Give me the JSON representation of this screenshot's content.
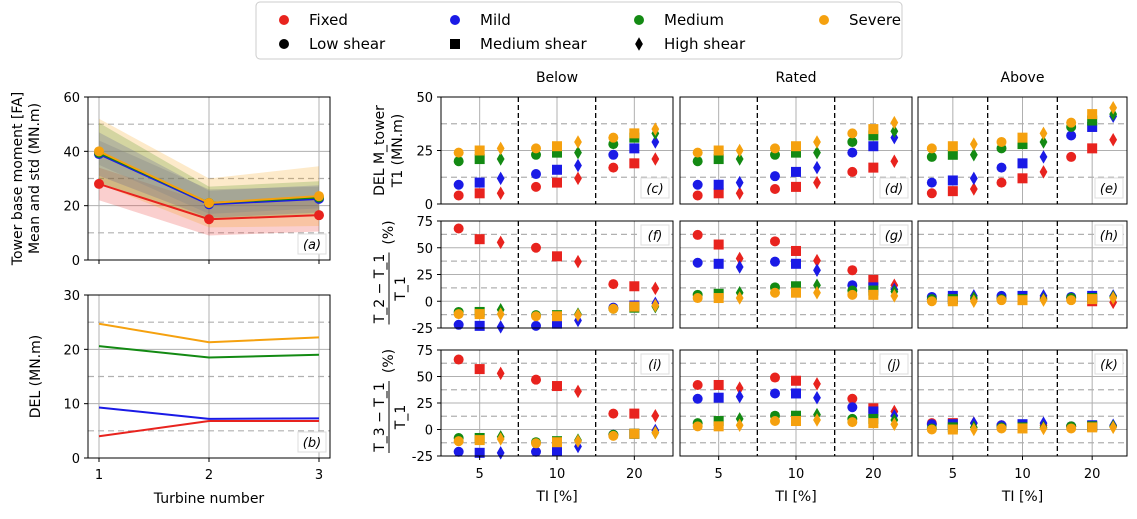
{
  "legend": {
    "items": [
      {
        "label": "Fixed",
        "marker": "circle",
        "color": "#e8231e"
      },
      {
        "label": "Mild",
        "marker": "circle",
        "color": "#1a1ae6"
      },
      {
        "label": "Medium",
        "marker": "circle",
        "color": "#138a13"
      },
      {
        "label": "Severe",
        "marker": "circle",
        "color": "#f5a10f"
      },
      {
        "label": "Low shear",
        "marker": "circle",
        "color": "#000000"
      },
      {
        "label": "Medium shear",
        "marker": "square",
        "color": "#000000"
      },
      {
        "label": "High shear",
        "marker": "diamond",
        "color": "#000000"
      }
    ]
  },
  "column_titles": [
    "Below",
    "Rated",
    "Above"
  ],
  "colors": {
    "Fixed": "#e8231e",
    "Mild": "#1a1ae6",
    "Medium": "#138a13",
    "Severe": "#f5a10f"
  },
  "chart_data": [
    {
      "id": "a",
      "type": "line",
      "panel_label": "(a)",
      "ylabel_lines": [
        "Tower base moment [FA]",
        "Mean and std (MN.m)"
      ],
      "x": [
        1,
        2,
        3
      ],
      "ylim": [
        0,
        60
      ],
      "yticks": [
        0,
        20,
        40,
        60
      ],
      "series": [
        {
          "name": "Fixed",
          "mean": [
            28,
            15,
            16.5
          ],
          "std": [
            6,
            6,
            6
          ]
        },
        {
          "name": "Mild",
          "mean": [
            39,
            20.5,
            22.5
          ],
          "std": [
            8,
            5,
            5
          ]
        },
        {
          "name": "Medium",
          "mean": [
            39.5,
            21,
            23
          ],
          "std": [
            11,
            6,
            6
          ]
        },
        {
          "name": "Severe",
          "mean": [
            40,
            21,
            23.5
          ],
          "std": [
            12,
            9,
            11
          ]
        }
      ],
      "grey_band": {
        "upper": [
          44,
          26,
          27
        ],
        "lower": [
          35,
          17,
          19
        ]
      }
    },
    {
      "id": "b",
      "type": "line",
      "panel_label": "(b)",
      "ylabel": "DEL (MN.m)",
      "xlabel": "Turbine number",
      "x": [
        1,
        2,
        3
      ],
      "xticks": [
        "1",
        "2",
        "3"
      ],
      "ylim": [
        0,
        30
      ],
      "yticks": [
        0,
        10,
        20,
        30
      ],
      "series": [
        {
          "name": "Fixed",
          "values": [
            4,
            6.8,
            6.8
          ]
        },
        {
          "name": "Mild",
          "values": [
            9.3,
            7.2,
            7.3
          ]
        },
        {
          "name": "Medium",
          "values": [
            20.6,
            18.5,
            19
          ]
        },
        {
          "name": "Severe",
          "values": [
            24.7,
            21.3,
            22.2
          ]
        }
      ]
    },
    {
      "id": "row1",
      "type": "scatter",
      "ylabel_lines": [
        "DEL M_tower",
        "T1 (MN.m)"
      ],
      "ylim": [
        0,
        50
      ],
      "yticks": [
        0,
        25,
        50
      ],
      "panel_labels": [
        "(c)",
        "(d)",
        "(e)"
      ],
      "columns": [
        {
          "groups": [
            {
              "ti": "5",
              "points": {
                "Fixed": [
                  4,
                  5,
                  5
                ],
                "Mild": [
                  9,
                  10,
                  12
                ],
                "Medium": [
                  20,
                  21,
                  21
                ],
                "Severe": [
                  24,
                  25,
                  26
                ]
              }
            },
            {
              "ti": "10",
              "points": {
                "Fixed": [
                  8,
                  10,
                  12
                ],
                "Mild": [
                  14,
                  16,
                  18
                ],
                "Medium": [
                  23,
                  24,
                  24
                ],
                "Severe": [
                  26,
                  27,
                  29
                ]
              }
            },
            {
              "ti": "20",
              "points": {
                "Fixed": [
                  17,
                  19,
                  21
                ],
                "Mild": [
                  23,
                  26,
                  29
                ],
                "Medium": [
                  28,
                  31,
                  33
                ],
                "Severe": [
                  31,
                  33,
                  35
                ]
              }
            }
          ]
        },
        {
          "groups": [
            {
              "ti": "5",
              "points": {
                "Fixed": [
                  4,
                  5,
                  5
                ],
                "Mild": [
                  9,
                  9,
                  10
                ],
                "Medium": [
                  20,
                  21,
                  21
                ],
                "Severe": [
                  24,
                  25,
                  25
                ]
              }
            },
            {
              "ti": "10",
              "points": {
                "Fixed": [
                  7,
                  8,
                  10
                ],
                "Mild": [
                  13,
                  15,
                  17
                ],
                "Medium": [
                  23,
                  24,
                  24
                ],
                "Severe": [
                  26,
                  27,
                  29
                ]
              }
            },
            {
              "ti": "20",
              "points": {
                "Fixed": [
                  15,
                  17,
                  20
                ],
                "Mild": [
                  24,
                  27,
                  31
                ],
                "Medium": [
                  29,
                  32,
                  34
                ],
                "Severe": [
                  33,
                  35,
                  38
                ]
              }
            }
          ]
        },
        {
          "groups": [
            {
              "ti": "5",
              "points": {
                "Fixed": [
                  5,
                  6,
                  7
                ],
                "Mild": [
                  10,
                  11,
                  12
                ],
                "Medium": [
                  22,
                  23,
                  23
                ],
                "Severe": [
                  26,
                  27,
                  28
                ]
              }
            },
            {
              "ti": "10",
              "points": {
                "Fixed": [
                  10,
                  12,
                  15
                ],
                "Mild": [
                  17,
                  19,
                  22
                ],
                "Medium": [
                  26,
                  28,
                  29
                ],
                "Severe": [
                  29,
                  31,
                  33
                ]
              }
            },
            {
              "ti": "20",
              "points": {
                "Fixed": [
                  22,
                  26,
                  30
                ],
                "Mild": [
                  32,
                  36,
                  41
                ],
                "Medium": [
                  36,
                  39,
                  42
                ],
                "Severe": [
                  38,
                  42,
                  45
                ]
              }
            }
          ]
        }
      ]
    },
    {
      "id": "row2",
      "type": "scatter",
      "ylabel_lines": [
        "T_2 − T_1",
        "T_1",
        "(%)"
      ],
      "ylim": [
        -25,
        75
      ],
      "yticks": [
        -25,
        0,
        25,
        50,
        75
      ],
      "panel_labels": [
        "(f)",
        "(g)",
        "(h)"
      ],
      "columns": [
        {
          "groups": [
            {
              "ti": "5",
              "points": {
                "Fixed": [
                  68,
                  58,
                  55
                ],
                "Mild": [
                  -22,
                  -23,
                  -24
                ],
                "Medium": [
                  -10,
                  -10,
                  -8
                ],
                "Severe": [
                  -12,
                  -12,
                  -12
                ]
              }
            },
            {
              "ti": "10",
              "points": {
                "Fixed": [
                  50,
                  42,
                  37
                ],
                "Mild": [
                  -23,
                  -21,
                  -18
                ],
                "Medium": [
                  -13,
                  -13,
                  -12
                ],
                "Severe": [
                  -14,
                  -14,
                  -13
                ]
              }
            },
            {
              "ti": "20",
              "points": {
                "Fixed": [
                  16,
                  14,
                  12
                ],
                "Mild": [
                  -6,
                  -4,
                  -2
                ],
                "Medium": [
                  -7,
                  -6,
                  -5
                ],
                "Severe": [
                  -7,
                  -5,
                  -4
                ]
              }
            }
          ]
        },
        {
          "groups": [
            {
              "ti": "5",
              "points": {
                "Fixed": [
                  62,
                  53,
                  40
                ],
                "Mild": [
                  36,
                  35,
                  32
                ],
                "Medium": [
                  6,
                  7,
                  8
                ],
                "Severe": [
                  3,
                  3,
                  3
                ]
              }
            },
            {
              "ti": "10",
              "points": {
                "Fixed": [
                  56,
                  47,
                  38
                ],
                "Mild": [
                  37,
                  35,
                  29
                ],
                "Medium": [
                  13,
                  14,
                  15
                ],
                "Severe": [
                  8,
                  8,
                  8
                ]
              }
            },
            {
              "ti": "20",
              "points": {
                "Fixed": [
                  29,
                  20,
                  15
                ],
                "Mild": [
                  15,
                  13,
                  11
                ],
                "Medium": [
                  10,
                  10,
                  9
                ],
                "Severe": [
                  6,
                  6,
                  5
                ]
              }
            }
          ]
        },
        {
          "groups": [
            {
              "ti": "5",
              "points": {
                "Fixed": [
                  2,
                  2,
                  2
                ],
                "Mild": [
                  4,
                  5,
                  5
                ],
                "Medium": [
                  2,
                  2,
                  3
                ],
                "Severe": [
                  0,
                  0,
                  0
                ]
              }
            },
            {
              "ti": "10",
              "points": {
                "Fixed": [
                  3,
                  3,
                  3
                ],
                "Mild": [
                  5,
                  5,
                  5
                ],
                "Medium": [
                  2,
                  2,
                  2
                ],
                "Severe": [
                  1,
                  1,
                  1
                ]
              }
            },
            {
              "ti": "20",
              "points": {
                "Fixed": [
                  3,
                  0,
                  -1
                ],
                "Mild": [
                  4,
                  5,
                  5
                ],
                "Medium": [
                  3,
                  3,
                  4
                ],
                "Severe": [
                  1,
                  2,
                  3
                ]
              }
            }
          ]
        }
      ]
    },
    {
      "id": "row3",
      "type": "scatter",
      "ylabel_lines": [
        "T_3 − T_1",
        "T_1",
        "(%)"
      ],
      "ylim": [
        -25,
        75
      ],
      "yticks": [
        -25,
        0,
        25,
        50,
        75
      ],
      "xlabel": "TI [%]",
      "xticks": [
        "5",
        "10",
        "20"
      ],
      "panel_labels": [
        "(i)",
        "(j)",
        "(k)"
      ],
      "columns": [
        {
          "groups": [
            {
              "ti": "5",
              "points": {
                "Fixed": [
                  66,
                  57,
                  53
                ],
                "Mild": [
                  -21,
                  -22,
                  -22
                ],
                "Medium": [
                  -8,
                  -8,
                  -7
                ],
                "Severe": [
                  -11,
                  -10,
                  -9
                ]
              }
            },
            {
              "ti": "10",
              "points": {
                "Fixed": [
                  47,
                  41,
                  36
                ],
                "Mild": [
                  -21,
                  -20,
                  -16
                ],
                "Medium": [
                  -12,
                  -11,
                  -10
                ],
                "Severe": [
                  -13,
                  -12,
                  -11
                ]
              }
            },
            {
              "ti": "20",
              "points": {
                "Fixed": [
                  15,
                  15,
                  13
                ],
                "Mild": [
                  -5,
                  -4,
                  -1
                ],
                "Medium": [
                  -5,
                  -4,
                  -3
                ],
                "Severe": [
                  -6,
                  -4,
                  -3
                ]
              }
            }
          ]
        },
        {
          "groups": [
            {
              "ti": "5",
              "points": {
                "Fixed": [
                  42,
                  42,
                  39
                ],
                "Mild": [
                  29,
                  30,
                  31
                ],
                "Medium": [
                  6,
                  8,
                  10
                ],
                "Severe": [
                  3,
                  3,
                  4
                ]
              }
            },
            {
              "ti": "10",
              "points": {
                "Fixed": [
                  49,
                  46,
                  43
                ],
                "Mild": [
                  34,
                  34,
                  30
                ],
                "Medium": [
                  13,
                  13,
                  14
                ],
                "Severe": [
                  8,
                  8,
                  9
                ]
              }
            },
            {
              "ti": "20",
              "points": {
                "Fixed": [
                  29,
                  20,
                  17
                ],
                "Mild": [
                  21,
                  17,
                  13
                ],
                "Medium": [
                  10,
                  10,
                  9
                ],
                "Severe": [
                  7,
                  6,
                  5
                ]
              }
            }
          ]
        },
        {
          "groups": [
            {
              "ti": "5",
              "points": {
                "Fixed": [
                  6,
                  6,
                  6
                ],
                "Mild": [
                  5,
                  5,
                  6
                ],
                "Medium": [
                  1,
                  2,
                  2
                ],
                "Severe": [
                  0,
                  0,
                  0
                ]
              }
            },
            {
              "ti": "10",
              "points": {
                "Fixed": [
                  4,
                  4,
                  4
                ],
                "Mild": [
                  4,
                  5,
                  6
                ],
                "Medium": [
                  2,
                  2,
                  2
                ],
                "Severe": [
                  1,
                  1,
                  1
                ]
              }
            },
            {
              "ti": "20",
              "points": {
                "Fixed": [
                  3,
                  3,
                  3
                ],
                "Mild": [
                  3,
                  4,
                  4
                ],
                "Medium": [
                  3,
                  3,
                  3
                ],
                "Severe": [
                  1,
                  2,
                  2
                ]
              }
            }
          ]
        }
      ]
    }
  ]
}
